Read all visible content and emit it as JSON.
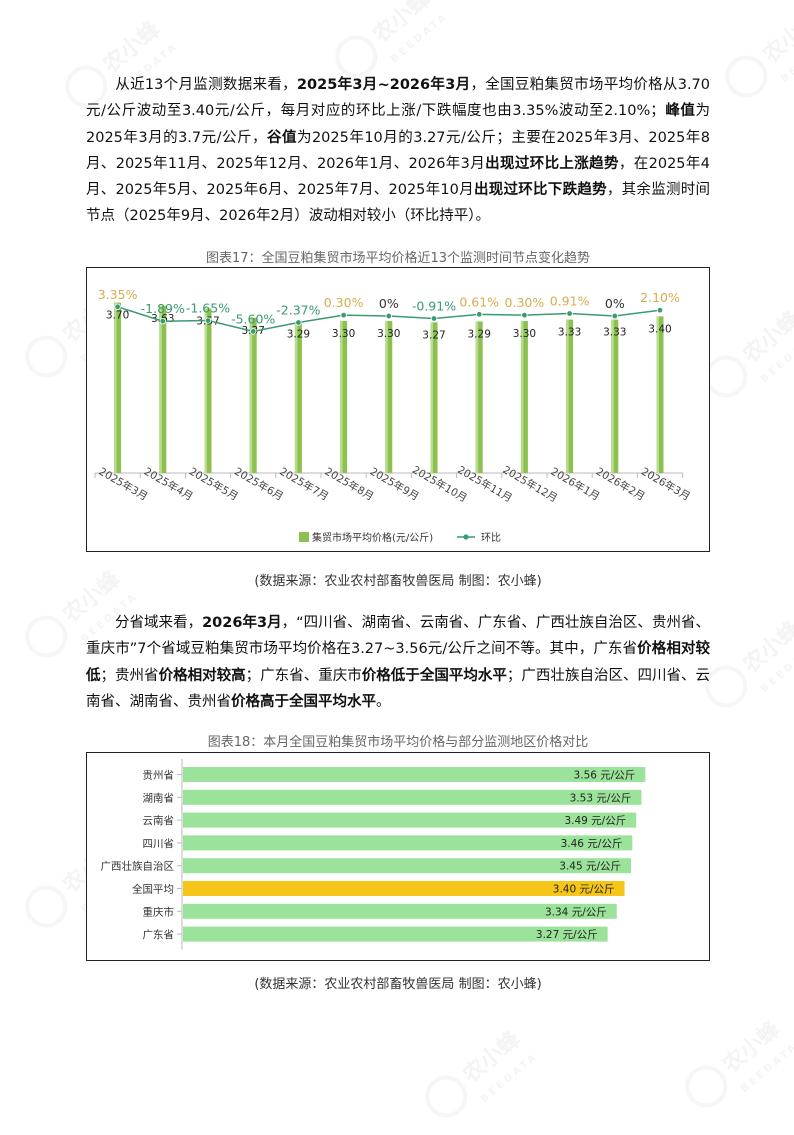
{
  "para1": {
    "t1": "从近13个月监测数据来看，",
    "b1": "2025年3月~2026年3月",
    "t2": "，全国豆粕集贸市场平均价格从3.70元/公斤波动至3.40元/公斤，每月对应的环比上涨/下跌幅度也由3.35%波动至2.10%；",
    "b2": "峰值",
    "t3": "为2025年3月的3.7元/公斤，",
    "b3": "谷值",
    "t4": "为2025年10月的3.27元/公斤；主要在2025年3月、2025年8月、2025年11月、2025年12月、2026年1月、2026年3月",
    "b4": "出现过环比上涨趋势",
    "t5": "，在2025年4月、2025年5月、2025年6月、2025年7月、2025年10月",
    "b5": "出现过环比下跌趋势",
    "t6": "，其余监测时间节点（2025年9月、2026年2月）波动相对较小（环比持平）。"
  },
  "chart1_caption": "图表17：全国豆粕集贸市场平均价格近13个监测时间节点变化趋势",
  "source_text": "(数据来源：农业农村部畜牧兽医局     制图：农小蜂)",
  "para2": {
    "t1": "分省域来看，",
    "b1": "2026年3月",
    "t2": "，“四川省、湖南省、云南省、广东省、广西壮族自治区、贵州省、重庆市”7个省域豆粕集贸市场平均价格在3.27~3.56元/公斤之间不等。其中，广东省",
    "b2": "价格相对较低",
    "t3": "；贵州省",
    "b3": "价格相对较高",
    "t4": "；广东省、重庆市",
    "b4": "价格低于全国平均水平",
    "t5": "；广西壮族自治区、四川省、云南省、湖南省、贵州省",
    "b5": "价格高于全国平均水平",
    "t6": "。"
  },
  "chart2_caption": "图表18：本月全国豆粕集贸市场平均价格与部分监测地区价格对比",
  "watermark": {
    "name": "农小蜂",
    "sub": "BEEDATA"
  },
  "chart_data": [
    {
      "type": "bar",
      "categories": [
        "2025年3月",
        "2025年4月",
        "2025年5月",
        "2025年6月",
        "2025年7月",
        "2025年8月",
        "2025年9月",
        "2025年10月",
        "2025年11月",
        "2025年12月",
        "2026年1月",
        "2026年2月",
        "2026年3月"
      ],
      "series": [
        {
          "name": "集贸市场平均价格(元/公斤)",
          "type": "bar",
          "color": "#8cc152",
          "values": [
            3.7,
            3.63,
            3.57,
            3.37,
            3.29,
            3.3,
            3.3,
            3.27,
            3.29,
            3.3,
            3.33,
            3.33,
            3.4
          ],
          "labels": [
            "3.70",
            "3.63",
            "3.57",
            "3.37",
            "3.29",
            "3.30",
            "3.30",
            "3.27",
            "3.29",
            "3.30",
            "3.33",
            "3.33",
            "3.40"
          ]
        },
        {
          "name": "环比",
          "type": "line",
          "color": "#3a9a72",
          "values": [
            3.35,
            -1.89,
            -1.65,
            -5.6,
            -2.37,
            0.3,
            0,
            -0.91,
            0.61,
            0.3,
            0.91,
            0,
            2.1
          ],
          "labels": [
            "3.35%",
            "-1.89%",
            "-1.65%",
            "-5.60%",
            "-2.37%",
            "0.30%",
            "0%",
            "-0.91%",
            "0.61%",
            "0.30%",
            "0.91%",
            "0%",
            "2.10%"
          ]
        }
      ],
      "colors": {
        "positive": "#d8ac4e",
        "negative": "#3a9a72",
        "zero": "#333333"
      },
      "legend": "bottom",
      "grid": false
    },
    {
      "type": "bar",
      "orientation": "horizontal",
      "categories": [
        "贵州省",
        "湖南省",
        "云南省",
        "四川省",
        "广西壮族自治区",
        "全国平均",
        "重庆市",
        "广东省"
      ],
      "values": [
        3.56,
        3.53,
        3.49,
        3.46,
        3.45,
        3.4,
        3.34,
        3.27
      ],
      "labels": [
        "3.56 元/公斤",
        "3.53 元/公斤",
        "3.49 元/公斤",
        "3.46 元/公斤",
        "3.45 元/公斤",
        "3.40 元/公斤",
        "3.34 元/公斤",
        "3.27 元/公斤"
      ],
      "colors": {
        "bar": "#9be29a",
        "highlight": "#f5c518"
      },
      "highlight": "全国平均",
      "xlim": [
        0,
        3.75
      ]
    }
  ]
}
